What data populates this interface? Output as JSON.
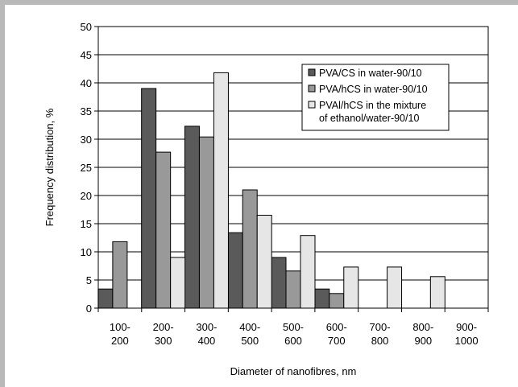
{
  "chart_data": {
    "type": "bar",
    "categories": [
      [
        "100-",
        "200"
      ],
      [
        "200-",
        "300"
      ],
      [
        "300-",
        "400"
      ],
      [
        "400-",
        "500"
      ],
      [
        "500-",
        "600"
      ],
      [
        "600-",
        "700"
      ],
      [
        "700-",
        "800"
      ],
      [
        "800-",
        "900"
      ],
      [
        "900-",
        "1000"
      ]
    ],
    "series": [
      {
        "name": "PVA/CS in water-90/10",
        "color": "#5a5a5a",
        "values": [
          3.4,
          39,
          32.3,
          13.4,
          9,
          3.4,
          0,
          0,
          0
        ]
      },
      {
        "name": "PVA/hCS in water-90/10",
        "color": "#999999",
        "values": [
          11.8,
          27.7,
          30.4,
          21,
          6.6,
          2.6,
          0,
          0,
          0
        ]
      },
      {
        "name": "PVAl/hCS in the mixture of ethanol/water-90/10",
        "legend_lines": [
          "PVAl/hCS in the mixture",
          "of ethanol/water-90/10"
        ],
        "color": "#e6e6e6",
        "values": [
          0,
          9,
          41.8,
          16.5,
          12.9,
          7.3,
          7.3,
          5.6,
          0
        ]
      }
    ],
    "ylim": [
      0,
      50
    ],
    "yticks": [
      0,
      5,
      10,
      15,
      20,
      25,
      30,
      35,
      40,
      45,
      50
    ],
    "ylabel": "Frequency distribution, %",
    "xlabel": "Diameter of nanofibres, nm",
    "grid": true,
    "legend_position": "top-right"
  }
}
